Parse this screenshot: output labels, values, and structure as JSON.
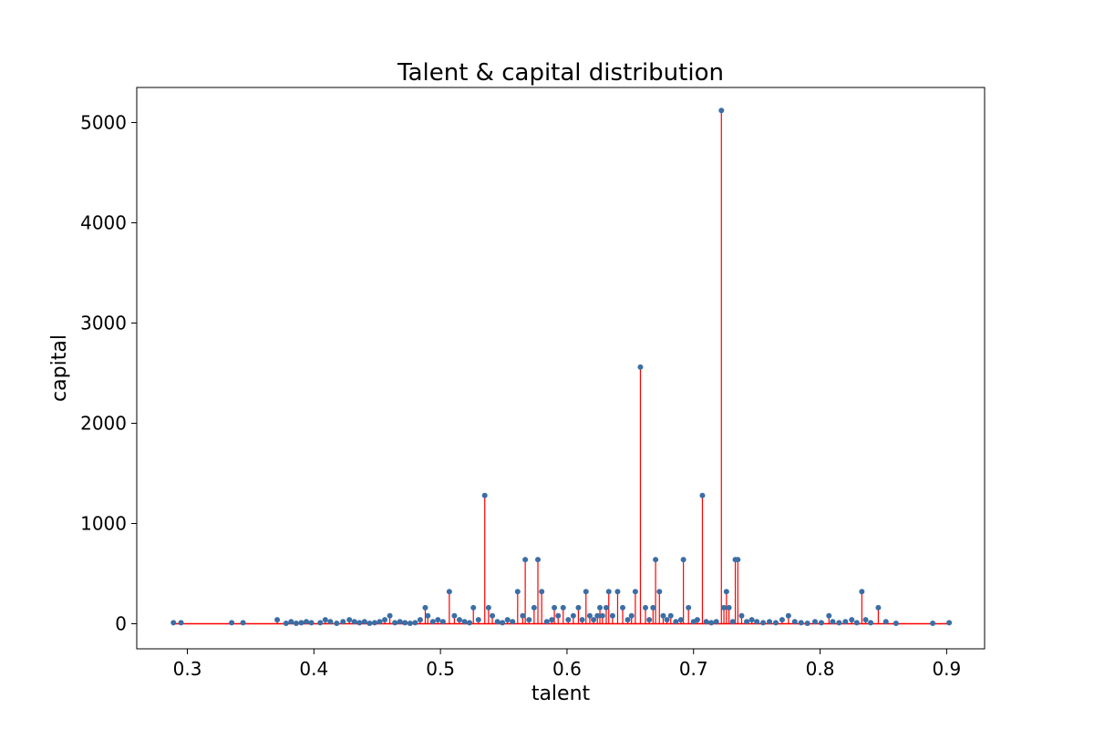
{
  "chart_data": {
    "type": "scatter",
    "title": "Talent & capital distribution",
    "xlabel": "talent",
    "ylabel": "capital",
    "xlim": [
      0.26,
      0.93
    ],
    "ylim": [
      -250,
      5350
    ],
    "xticks": [
      0.3,
      0.4,
      0.5,
      0.6,
      0.7,
      0.8,
      0.9
    ],
    "xtick_labels": [
      "0.3",
      "0.4",
      "0.5",
      "0.6",
      "0.7",
      "0.8",
      "0.9"
    ],
    "yticks": [
      0,
      1000,
      2000,
      3000,
      4000,
      5000
    ],
    "ytick_labels": [
      "0",
      "1000",
      "2000",
      "3000",
      "4000",
      "5000"
    ],
    "grid": false,
    "legend": "none",
    "marker_color": "#3b6ea5",
    "stem_color": "#ff0000",
    "baseline": 0,
    "stems": true,
    "x": [
      0.289,
      0.295,
      0.335,
      0.344,
      0.371,
      0.378,
      0.382,
      0.386,
      0.39,
      0.394,
      0.398,
      0.405,
      0.409,
      0.413,
      0.418,
      0.423,
      0.428,
      0.432,
      0.436,
      0.44,
      0.444,
      0.448,
      0.452,
      0.456,
      0.46,
      0.464,
      0.468,
      0.472,
      0.476,
      0.48,
      0.484,
      0.488,
      0.49,
      0.494,
      0.498,
      0.502,
      0.507,
      0.511,
      0.515,
      0.519,
      0.523,
      0.526,
      0.53,
      0.535,
      0.538,
      0.541,
      0.545,
      0.549,
      0.553,
      0.557,
      0.561,
      0.565,
      0.567,
      0.57,
      0.574,
      0.577,
      0.58,
      0.584,
      0.588,
      0.59,
      0.593,
      0.597,
      0.601,
      0.605,
      0.609,
      0.612,
      0.615,
      0.618,
      0.621,
      0.624,
      0.626,
      0.628,
      0.631,
      0.633,
      0.636,
      0.64,
      0.644,
      0.648,
      0.651,
      0.654,
      0.658,
      0.662,
      0.665,
      0.668,
      0.67,
      0.673,
      0.676,
      0.679,
      0.682,
      0.686,
      0.69,
      0.692,
      0.696,
      0.7,
      0.703,
      0.707,
      0.71,
      0.714,
      0.718,
      0.722,
      0.724,
      0.726,
      0.728,
      0.731,
      0.733,
      0.735,
      0.738,
      0.742,
      0.746,
      0.75,
      0.755,
      0.76,
      0.765,
      0.77,
      0.775,
      0.78,
      0.785,
      0.79,
      0.796,
      0.801,
      0.807,
      0.81,
      0.815,
      0.82,
      0.825,
      0.829,
      0.833,
      0.836,
      0.84,
      0.846,
      0.852,
      0.86,
      0.889,
      0.902
    ],
    "y": [
      10,
      10,
      10,
      10,
      40,
      5,
      20,
      5,
      10,
      20,
      10,
      10,
      40,
      20,
      5,
      20,
      40,
      20,
      10,
      20,
      5,
      10,
      20,
      40,
      80,
      10,
      20,
      10,
      5,
      10,
      40,
      160,
      80,
      20,
      40,
      20,
      320,
      80,
      40,
      20,
      10,
      160,
      40,
      1280,
      160,
      80,
      20,
      10,
      40,
      20,
      320,
      80,
      640,
      40,
      160,
      640,
      320,
      20,
      40,
      160,
      80,
      160,
      40,
      80,
      160,
      40,
      320,
      80,
      40,
      80,
      160,
      80,
      160,
      320,
      80,
      320,
      160,
      40,
      80,
      320,
      2560,
      160,
      40,
      160,
      640,
      320,
      80,
      40,
      80,
      20,
      40,
      640,
      160,
      20,
      40,
      1280,
      20,
      10,
      20,
      5120,
      160,
      320,
      160,
      20,
      640,
      640,
      80,
      20,
      40,
      20,
      10,
      20,
      10,
      40,
      80,
      20,
      10,
      5,
      20,
      10,
      80,
      20,
      10,
      20,
      40,
      10,
      320,
      40,
      10,
      160,
      20,
      5,
      5,
      10
    ]
  }
}
